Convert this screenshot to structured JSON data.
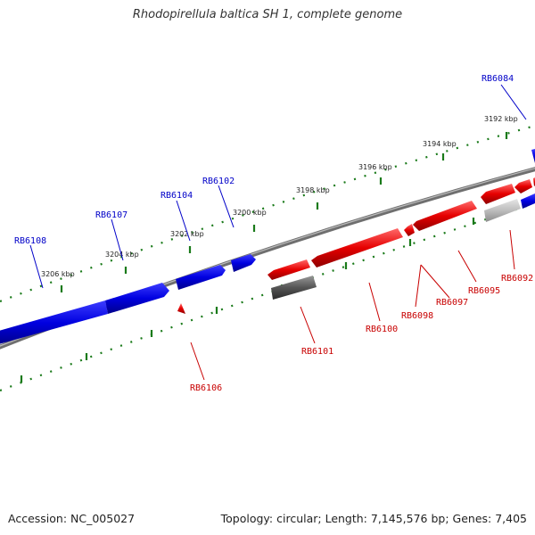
{
  "title": "Rhodopirellula baltica SH 1, complete genome",
  "footer": {
    "accession": "Accession: NC_005027",
    "summary": "Topology: circular; Length: 7,145,576 bp; Genes: 7,405"
  },
  "colors": {
    "forward": "#0000e6",
    "reverse": "#e60000",
    "reverse_dark": "#555555",
    "reverse_light": "#b8b8b8",
    "tick": "#1a7a1a",
    "backbone": "#8a8a8a"
  },
  "ticks": [
    {
      "label": "3192 kbp"
    },
    {
      "label": "3194 kbp"
    },
    {
      "label": "3196 kbp"
    },
    {
      "label": "3198 kbp"
    },
    {
      "label": "3200 kbp"
    },
    {
      "label": "3202 kbp"
    },
    {
      "label": "3204 kbp"
    },
    {
      "label": "3206 kbp"
    }
  ],
  "genes": [
    {
      "name": "RB6084",
      "strand": "forward"
    },
    {
      "name": "RB6102",
      "strand": "forward"
    },
    {
      "name": "RB6104",
      "strand": "forward"
    },
    {
      "name": "RB6107",
      "strand": "forward"
    },
    {
      "name": "RB6108",
      "strand": "forward"
    },
    {
      "name": "RB6092",
      "strand": "reverse"
    },
    {
      "name": "RB6095",
      "strand": "reverse"
    },
    {
      "name": "RB6097",
      "strand": "reverse"
    },
    {
      "name": "RB6098",
      "strand": "reverse"
    },
    {
      "name": "RB6100",
      "strand": "reverse"
    },
    {
      "name": "RB6101",
      "strand": "reverse"
    },
    {
      "name": "RB6106",
      "strand": "reverse"
    }
  ]
}
